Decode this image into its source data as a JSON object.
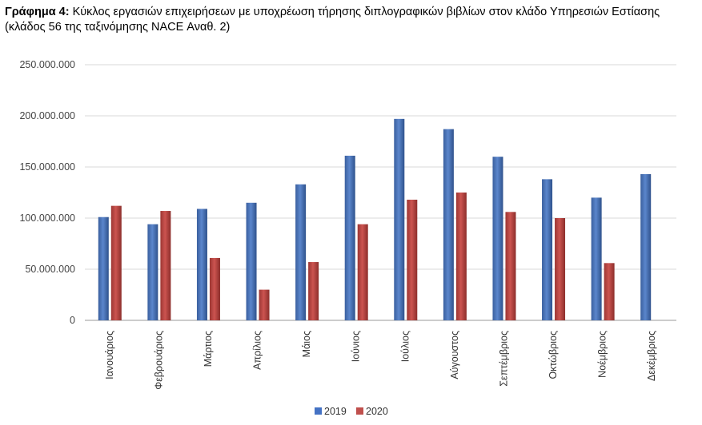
{
  "caption": {
    "label": "Γράφημα 4:",
    "text": " Κύκλος εργασιών επιχειρήσεων με υποχρέωση τήρησης διπλογραφικών βιβλίων στον κλάδο Υπηρεσιών Εστίασης (κλάδος 56 της ταξινόμησης NACE Αναθ. 2)"
  },
  "chart_data": {
    "type": "bar",
    "categories": [
      "Ιανουάριος",
      "Φεβρουάριος",
      "Μάρτιος",
      "Απρίλιος",
      "Μάιος",
      "Ιούνιος",
      "Ιούλιος",
      "Αύγουστος",
      "Σεπτέμβριος",
      "Οκτώβριος",
      "Νοέμβριος",
      "Δεκέμβριος"
    ],
    "series": [
      {
        "name": "2019",
        "color": "#4472C4",
        "values": [
          101000000,
          94000000,
          109000000,
          115000000,
          133000000,
          161000000,
          197000000,
          187000000,
          160000000,
          138000000,
          120000000,
          143000000
        ]
      },
      {
        "name": "2020",
        "color": "#C0504D",
        "values": [
          112000000,
          107000000,
          61000000,
          30000000,
          57000000,
          94000000,
          118000000,
          125000000,
          106000000,
          100000000,
          56000000,
          null
        ]
      }
    ],
    "yticks": [
      "0",
      "50.000.000",
      "100.000.000",
      "150.000.000",
      "200.000.000",
      "250.000.000"
    ],
    "ylim": [
      0,
      250000000
    ],
    "grid": true,
    "legend": "bottom"
  }
}
